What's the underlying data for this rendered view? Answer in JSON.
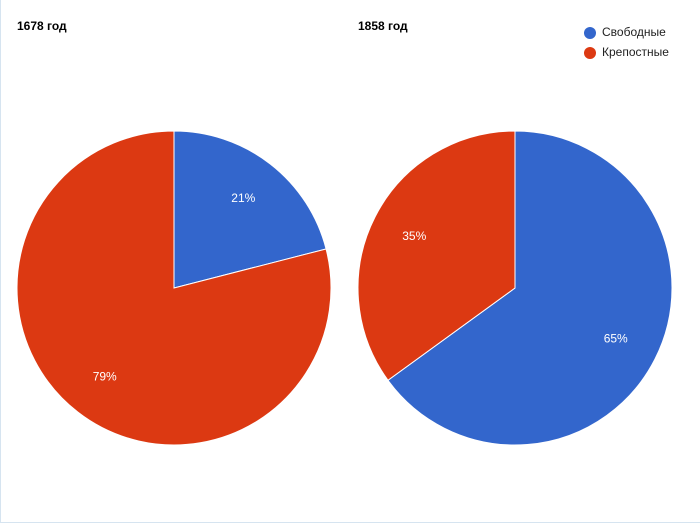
{
  "legend": {
    "names": [
      "Свободные",
      "Крепостные"
    ],
    "colors": [
      "#3366cc",
      "#dc3912"
    ]
  },
  "chart_data": [
    {
      "type": "pie",
      "title": "1678 год",
      "values": [
        21,
        79
      ],
      "value_labels": [
        "21%",
        "79%"
      ]
    },
    {
      "type": "pie",
      "title": "1858 год",
      "values": [
        65,
        35
      ],
      "value_labels": [
        "65%",
        "35%"
      ]
    }
  ]
}
